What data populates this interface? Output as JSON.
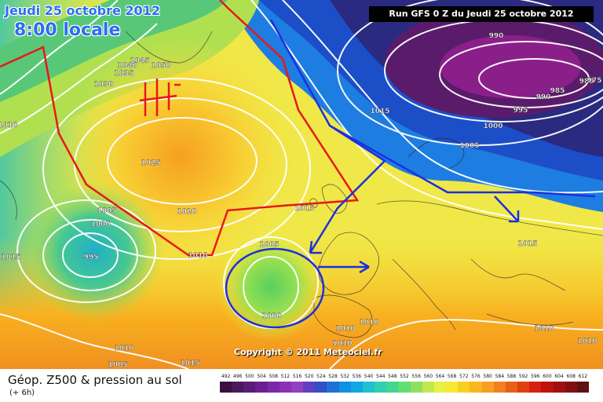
{
  "header": {
    "date_label": "Jeudi 25 octobre 2012",
    "time_label": "8:00 locale",
    "run_label": "Run GFS 0 Z du Jeudi 25 octobre 2012"
  },
  "copyright": "Copyright © 2011 Meteociel.fr",
  "footer": {
    "title": "Géop. Z500 & pression au sol",
    "subtitle": "(+ 6h)"
  },
  "legend": {
    "ticks": [
      "492",
      "496",
      "500",
      "504",
      "508",
      "512",
      "516",
      "520",
      "524",
      "528",
      "532",
      "536",
      "540",
      "544",
      "548",
      "552",
      "556",
      "560",
      "564",
      "568",
      "572",
      "576",
      "580",
      "584",
      "588",
      "592",
      "596",
      "600",
      "604",
      "608",
      "612"
    ],
    "colors": [
      "#3a1040",
      "#4a1a5a",
      "#5a1c78",
      "#6a2090",
      "#7a2aa8",
      "#8a30b8",
      "#9040c0",
      "#6040c0",
      "#3050c8",
      "#2070d8",
      "#1090e0",
      "#10a8e0",
      "#20c0d0",
      "#30d0b0",
      "#40d890",
      "#60e070",
      "#90e060",
      "#c0e850",
      "#e8f040",
      "#f8e830",
      "#f8d020",
      "#f8b820",
      "#f89e20",
      "#f08020",
      "#e86018",
      "#e04010",
      "#d82010",
      "#c01010",
      "#a01010",
      "#801010",
      "#601010"
    ]
  },
  "isobar_labels": [
    {
      "text": "1010"
    },
    {
      "text": "1030"
    },
    {
      "text": "1035"
    },
    {
      "text": "1040"
    },
    {
      "text": "1045"
    },
    {
      "text": "1050"
    },
    {
      "text": "1025"
    },
    {
      "text": "1020"
    },
    {
      "text": "1005"
    },
    {
      "text": "1000"
    },
    {
      "text": "995"
    },
    {
      "text": "1015"
    },
    {
      "text": "1010"
    },
    {
      "text": "1015"
    },
    {
      "text": "1005"
    },
    {
      "text": "1000"
    },
    {
      "text": "1010"
    },
    {
      "text": "1010"
    },
    {
      "text": "1010"
    },
    {
      "text": "1005"
    },
    {
      "text": "1015"
    },
    {
      "text": "1010"
    },
    {
      "text": "1015"
    },
    {
      "text": "1005"
    },
    {
      "text": "1000"
    },
    {
      "text": "995"
    },
    {
      "text": "990"
    },
    {
      "text": "985"
    },
    {
      "text": "980"
    },
    {
      "text": "975"
    },
    {
      "text": "990"
    },
    {
      "text": "1015"
    },
    {
      "text": "1010"
    },
    {
      "text": "1010"
    }
  ]
}
